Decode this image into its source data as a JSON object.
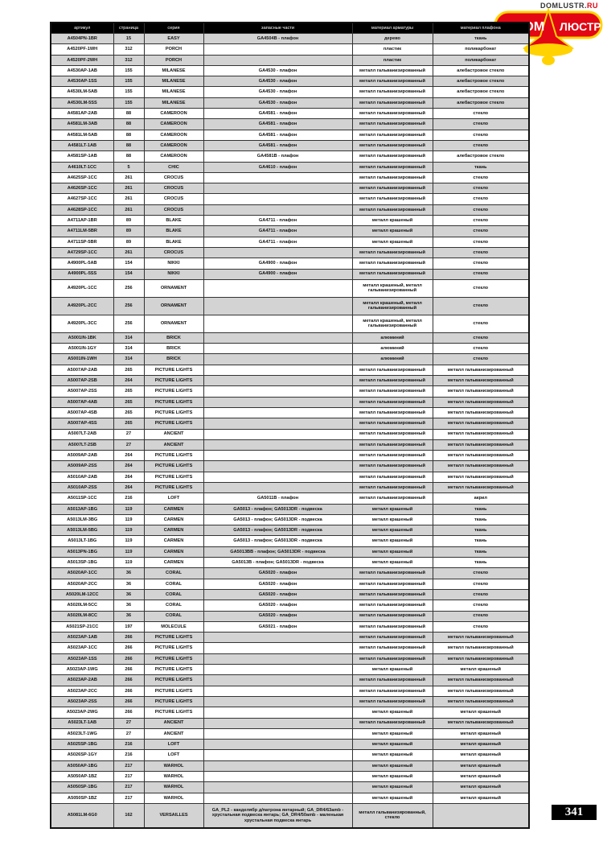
{
  "logo": {
    "site_prefix": "DOMLUSTR.",
    "site_suffix": "RU",
    "left_word": "ДОМ",
    "right_word": "ЛЮСТР",
    "colors": {
      "red": "#e30613",
      "yellow": "#ffd200"
    }
  },
  "page_number": "341",
  "table": {
    "headers": [
      "артикул",
      "страница",
      "серия",
      "запасные части",
      "материал арматуры",
      "материал плафона"
    ],
    "rows": [
      [
        "A4504PN-1BR",
        "15",
        "EASY",
        "GA4504B - плафон",
        "дерево",
        "ткань"
      ],
      [
        "A4520PF-1WH",
        "312",
        "PORCH",
        "",
        "пластик",
        "поликарбонат"
      ],
      [
        "A4520PF-2WH",
        "312",
        "PORCH",
        "",
        "пластик",
        "поликарбонат"
      ],
      [
        "A4530AP-1AB",
        "155",
        "MILANESE",
        "GA4530 - плафон",
        "металл гальванизированный",
        "алебастровое стекло"
      ],
      [
        "A4530AP-1SS",
        "155",
        "MILANESE",
        "GA4530 - плафон",
        "металл гальванизированный",
        "алебастровое стекло"
      ],
      [
        "A4530LM-5AB",
        "155",
        "MILANESE",
        "GA4530 - плафон",
        "металл гальванизированный",
        "алебастровое стекло"
      ],
      [
        "A4530LM-5SS",
        "155",
        "MILANESE",
        "GA4530 - плафон",
        "металл гальванизированный",
        "алебастровое стекло"
      ],
      [
        "A4581AP-2AB",
        "88",
        "CAMEROON",
        "GA4581 - плафон",
        "металл гальванизированный",
        "стекло"
      ],
      [
        "A4581LM-3AB",
        "88",
        "CAMEROON",
        "GA4581 - плафон",
        "металл гальванизированный",
        "стекло"
      ],
      [
        "A4581LM-5AB",
        "88",
        "CAMEROON",
        "GA4581 - плафон",
        "металл гальванизированный",
        "стекло"
      ],
      [
        "A4581LT-1AB",
        "88",
        "CAMEROON",
        "GA4581 - плафон",
        "металл гальванизированный",
        "стекло"
      ],
      [
        "A4581SP-1AB",
        "88",
        "CAMEROON",
        "GA4581B - плафон",
        "металл гальванизированный",
        "алебастровое стекло"
      ],
      [
        "A4610LT-1CC",
        "5",
        "CHIC",
        "GA4610 - плафон",
        "металл гальванизированный",
        "ткань"
      ],
      [
        "A4625SP-1CC",
        "261",
        "CROCUS",
        "",
        "металл гальванизированный",
        "стекло"
      ],
      [
        "A4626SP-1CC",
        "261",
        "CROCUS",
        "",
        "металл гальванизированный",
        "стекло"
      ],
      [
        "A4627SP-1CC",
        "261",
        "CROCUS",
        "",
        "металл гальванизированный",
        "стекло"
      ],
      [
        "A4628SP-1CC",
        "261",
        "CROCUS",
        "",
        "металл гальванизированный",
        "стекло"
      ],
      [
        "A4711AP-1BR",
        "89",
        "BLAKE",
        "GA4711 - плафон",
        "металл крашеный",
        "стекло"
      ],
      [
        "A4711LM-5BR",
        "89",
        "BLAKE",
        "GA4711 - плафон",
        "металл крашеный",
        "стекло"
      ],
      [
        "A4711SP-5BR",
        "89",
        "BLAKE",
        "GA4711 - плафон",
        "металл крашеный",
        "стекло"
      ],
      [
        "A4729SP-1CC",
        "261",
        "CROCUS",
        "",
        "металл гальванизированный",
        "стекло"
      ],
      [
        "A4900PL-5AB",
        "154",
        "NIKKI",
        "GA4900 - плафон",
        "металл гальванизированный",
        "стекло"
      ],
      [
        "A4900PL-5SS",
        "154",
        "NIKKI",
        "GA4900 - плафон",
        "металл гальванизированный",
        "стекло"
      ],
      [
        "A4920PL-1CC",
        "256",
        "ORNAMENT",
        "",
        "металл крашеный, металл гальванизированный",
        "стекло"
      ],
      [
        "A4920PL-2CC",
        "256",
        "ORNAMENT",
        "",
        "металл крашеный, металл гальванизированный",
        "стекло"
      ],
      [
        "A4920PL-3CC",
        "256",
        "ORNAMENT",
        "",
        "металл крашеный, металл гальванизированный",
        "стекло"
      ],
      [
        "A5001IN-1BK",
        "314",
        "BRICK",
        "",
        "алюминий",
        "стекло"
      ],
      [
        "A5001IN-1GY",
        "314",
        "BRICK",
        "",
        "алюминий",
        "стекло"
      ],
      [
        "A5001IN-1WH",
        "314",
        "BRICK",
        "",
        "алюминий",
        "стекло"
      ],
      [
        "A5007AP-2AB",
        "265",
        "PICTURE LIGHTS",
        "",
        "металл гальванизированный",
        "металл гальванизированный"
      ],
      [
        "A5007AP-2SB",
        "264",
        "PICTURE LIGHTS",
        "",
        "металл гальванизированный",
        "металл гальванизированный"
      ],
      [
        "A5007AP-2SS",
        "265",
        "PICTURE LIGHTS",
        "",
        "металл гальванизированный",
        "металл гальванизированный"
      ],
      [
        "A5007AP-4AB",
        "265",
        "PICTURE LIGHTS",
        "",
        "металл гальванизированный",
        "металл гальванизированный"
      ],
      [
        "A5007AP-4SB",
        "265",
        "PICTURE LIGHTS",
        "",
        "металл гальванизированный",
        "металл гальванизированный"
      ],
      [
        "A5007AP-4SS",
        "265",
        "PICTURE LIGHTS",
        "",
        "металл гальванизированный",
        "металл гальванизированный"
      ],
      [
        "A5007LT-2AB",
        "27",
        "ANCIENT",
        "",
        "металл гальванизированный",
        "металл гальванизированный"
      ],
      [
        "A5007LT-2SB",
        "27",
        "ANCIENT",
        "",
        "металл гальванизированный",
        "металл гальванизированный"
      ],
      [
        "A5009AP-2AB",
        "264",
        "PICTURE LIGHTS",
        "",
        "металл гальванизированный",
        "металл гальванизированный"
      ],
      [
        "A5009AP-2SS",
        "264",
        "PICTURE LIGHTS",
        "",
        "металл гальванизированный",
        "металл гальванизированный"
      ],
      [
        "A5010AP-2AB",
        "264",
        "PICTURE LIGHTS",
        "",
        "металл гальванизированный",
        "металл гальванизированный"
      ],
      [
        "A5010AP-2SS",
        "264",
        "PICTURE LIGHTS",
        "",
        "металл гальванизированный",
        "металл гальванизированный"
      ],
      [
        "A5011SP-1CC",
        "216",
        "LOFT",
        "GA5011B - плафон",
        "металл гальванизированный",
        "акрил"
      ],
      [
        "A5013AP-1BG",
        "119",
        "CARMEN",
        "GA5013 - плафон; GA5013DR - подвеска",
        "металл крашеный",
        "ткань"
      ],
      [
        "A5013LM-3BG",
        "119",
        "CARMEN",
        "GA5013 - плафон; GA5013DR - подвеска",
        "металл крашеный",
        "ткань"
      ],
      [
        "A5013LM-5BG",
        "119",
        "CARMEN",
        "GA5013 - плафон; GA5013DR - подвеска",
        "металл крашеный",
        "ткань"
      ],
      [
        "A5013LT-1BG",
        "119",
        "CARMEN",
        "GA5013 - плафон; GA5013DR - подвеска",
        "металл крашеный",
        "ткань"
      ],
      [
        "A5013PN-1BG",
        "119",
        "CARMEN",
        "GA5013BB - плафон; GA5013DR - подвеска",
        "металл крашеный",
        "ткань"
      ],
      [
        "A5013SP-1BG",
        "119",
        "CARMEN",
        "GA5013B - плафон; GA5013DR - подвеска",
        "металл крашеный",
        "ткань"
      ],
      [
        "A5020AP-1CC",
        "36",
        "CORAL",
        "GA5020 - плафон",
        "металл гальванизированный",
        "стекло"
      ],
      [
        "A5020AP-2CC",
        "36",
        "CORAL",
        "GA5020 - плафон",
        "металл гальванизированный",
        "стекло"
      ],
      [
        "A5020LM-12CC",
        "36",
        "CORAL",
        "GA5020 - плафон",
        "металл гальванизированный",
        "стекло"
      ],
      [
        "A5020LM-5CC",
        "36",
        "CORAL",
        "GA5020 - плафон",
        "металл гальванизированный",
        "стекло"
      ],
      [
        "A5020LM-8CC",
        "36",
        "CORAL",
        "GA5020 - плафон",
        "металл гальванизированный",
        "стекло"
      ],
      [
        "A5021SP-21CC",
        "197",
        "MOLECULE",
        "GA5021 - плафон",
        "металл гальванизированный",
        "стекло"
      ],
      [
        "A5023AP-1AB",
        "266",
        "PICTURE LIGHTS",
        "",
        "металл гальванизированный",
        "металл гальванизированный"
      ],
      [
        "A5023AP-1CC",
        "266",
        "PICTURE LIGHTS",
        "",
        "металл гальванизированный",
        "металл гальванизированный"
      ],
      [
        "A5023AP-1SS",
        "266",
        "PICTURE LIGHTS",
        "",
        "металл гальванизированный",
        "металл гальванизированный"
      ],
      [
        "A5023AP-1WG",
        "266",
        "PICTURE LIGHTS",
        "",
        "металл крашеный",
        "металл крашеный"
      ],
      [
        "A5023AP-2AB",
        "266",
        "PICTURE LIGHTS",
        "",
        "металл гальванизированный",
        "металл гальванизированный"
      ],
      [
        "A5023AP-2CC",
        "266",
        "PICTURE LIGHTS",
        "",
        "металл гальванизированный",
        "металл гальванизированный"
      ],
      [
        "A5023AP-2SS",
        "266",
        "PICTURE LIGHTS",
        "",
        "металл гальванизированный",
        "металл гальванизированный"
      ],
      [
        "A5023AP-2WG",
        "266",
        "PICTURE LIGHTS",
        "",
        "металл крашеный",
        "металл крашеный"
      ],
      [
        "A5023LT-1AB",
        "27",
        "ANCIENT",
        "",
        "металл гальванизированный",
        "металл гальванизированный"
      ],
      [
        "A5023LT-1WG",
        "27",
        "ANCIENT",
        "",
        "металл крашеный",
        "металл крашеный"
      ],
      [
        "A5025SP-1BG",
        "216",
        "LOFT",
        "",
        "металл крашеный",
        "металл крашеный"
      ],
      [
        "A5026SP-1GY",
        "216",
        "LOFT",
        "",
        "металл крашеный",
        "металл крашеный"
      ],
      [
        "A5050AP-1BG",
        "217",
        "WARHOL",
        "",
        "металл крашеный",
        "металл крашеный"
      ],
      [
        "A5050AP-1BZ",
        "217",
        "WARHOL",
        "",
        "металл крашеный",
        "металл крашеный"
      ],
      [
        "A5050SP-1BG",
        "217",
        "WARHOL",
        "",
        "металл крашеный",
        "металл крашеный"
      ],
      [
        "A5050SP-1BZ",
        "217",
        "WARHOL",
        "",
        "металл крашеный",
        "металл крашеный"
      ],
      [
        "A5081LM-6G0",
        "162",
        "VERSAILLES",
        "GA_PL2 - канделябр д/патрона янтарный; GA_DR4/63amb - хрустальная подвеска янтарь; GA_DR4/50amb - маленькая хрустальная подвеска янтарь",
        "металл гальванизированный, стекло",
        ""
      ]
    ]
  }
}
